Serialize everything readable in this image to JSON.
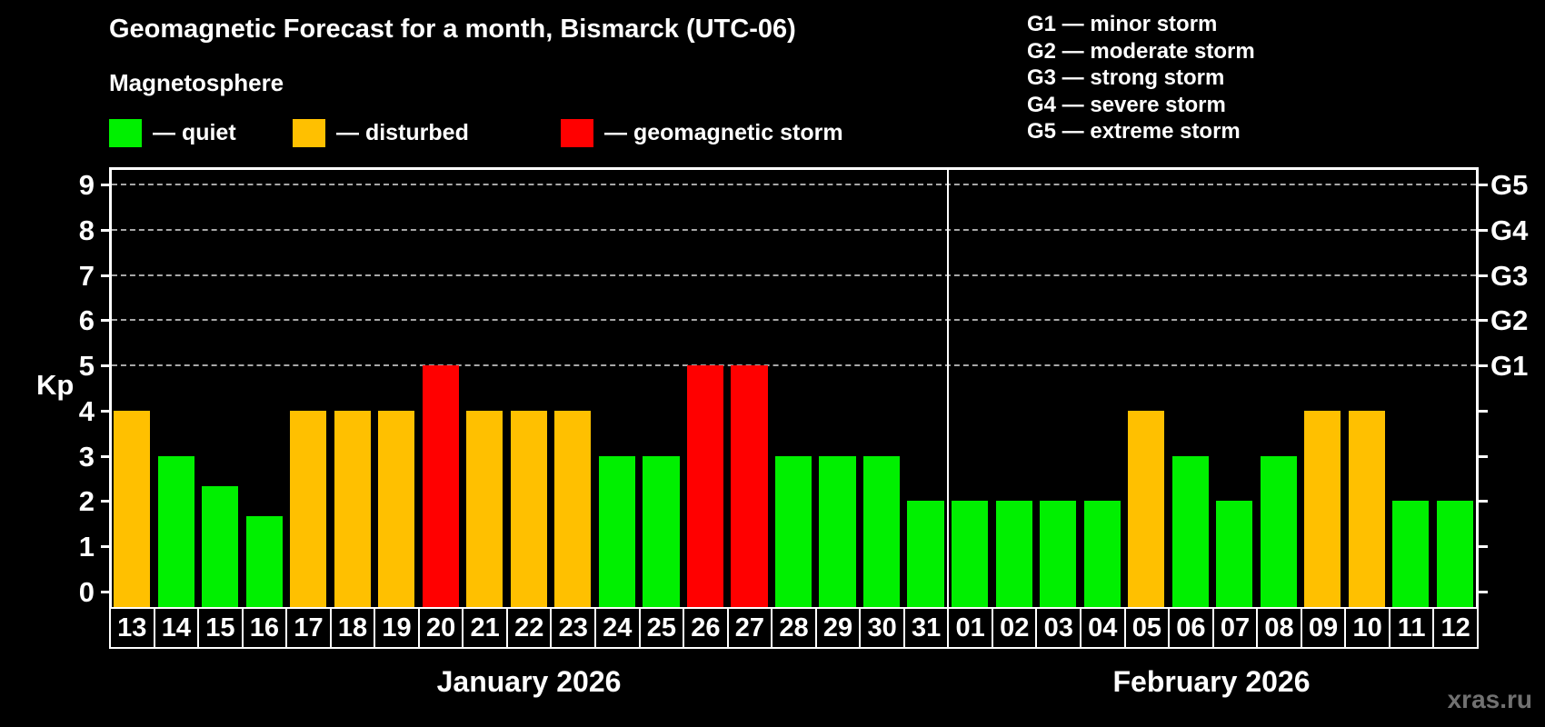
{
  "title": "Geomagnetic Forecast for a month, Bismarck (UTC-06)",
  "subtitle": "Magnetosphere",
  "legend": {
    "quiet": "— quiet",
    "disturbed": "— disturbed",
    "storm": "— geomagnetic storm"
  },
  "g_legend": [
    "G1 — minor storm",
    "G2 — moderate storm",
    "G3 — strong storm",
    "G4 — severe storm",
    "G5 — extreme storm"
  ],
  "watermark": "xras.ru",
  "colors": {
    "quiet": "#00F000",
    "disturbed": "#FFC000",
    "storm": "#FF0000",
    "grid": "#A8A8A8",
    "axis": "#FFFFFF",
    "watermark": "#717171"
  },
  "chart_data": {
    "type": "bar",
    "title": "Geomagnetic Forecast for a month, Bismarck (UTC-06)",
    "ylabel": "Kp",
    "ylim": [
      0,
      9
    ],
    "y_ticks": [
      0,
      1,
      2,
      3,
      4,
      5,
      6,
      7,
      8,
      9
    ],
    "grid_values": [
      5,
      6,
      7,
      8,
      9
    ],
    "right_labels": [
      {
        "value": 5,
        "label": "G1"
      },
      {
        "value": 6,
        "label": "G2"
      },
      {
        "value": 7,
        "label": "G3"
      },
      {
        "value": 8,
        "label": "G4"
      },
      {
        "value": 9,
        "label": "G5"
      }
    ],
    "categories": [
      "13",
      "14",
      "15",
      "16",
      "17",
      "18",
      "19",
      "20",
      "21",
      "22",
      "23",
      "24",
      "25",
      "26",
      "27",
      "28",
      "29",
      "30",
      "31",
      "01",
      "02",
      "03",
      "04",
      "05",
      "06",
      "07",
      "08",
      "09",
      "10",
      "11",
      "12"
    ],
    "values": [
      4,
      3,
      2.33,
      1.67,
      4,
      4,
      4,
      5,
      4,
      4,
      4,
      3,
      3,
      5,
      5,
      3,
      3,
      3,
      2,
      2,
      2,
      2,
      2,
      4,
      3,
      2,
      3,
      4,
      4,
      2,
      2
    ],
    "statuses": [
      "disturbed",
      "quiet",
      "quiet",
      "quiet",
      "disturbed",
      "disturbed",
      "disturbed",
      "storm",
      "disturbed",
      "disturbed",
      "disturbed",
      "quiet",
      "quiet",
      "storm",
      "storm",
      "quiet",
      "quiet",
      "quiet",
      "quiet",
      "quiet",
      "quiet",
      "quiet",
      "quiet",
      "disturbed",
      "quiet",
      "quiet",
      "quiet",
      "disturbed",
      "disturbed",
      "quiet",
      "quiet"
    ],
    "months": [
      {
        "label": "January 2026",
        "days": 19
      },
      {
        "label": "February 2026",
        "days": 12
      }
    ]
  }
}
